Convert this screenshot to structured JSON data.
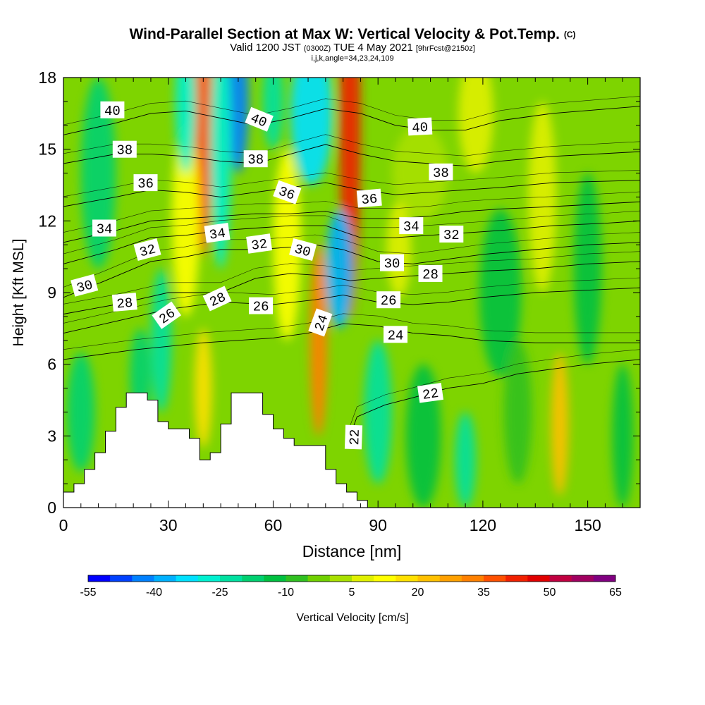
{
  "titles": {
    "main": "Wind-Parallel Section at Max W: Vertical Velocity & Pot.Temp.",
    "copyright": "(C)",
    "valid_prefix": "Valid 1200 JST",
    "valid_z": "(0300Z)",
    "valid_date": "TUE 4 May 2021",
    "forecast": "[9hrFcst@2150z]",
    "indices": "i,j,k,angle=34,23,24,109"
  },
  "chart_data": {
    "type": "heatmap",
    "xlabel": "Distance [nm]",
    "ylabel": "Height [Kft MSL]",
    "xlim": [
      0,
      165
    ],
    "ylim": [
      0,
      18
    ],
    "x_ticks": [
      0,
      30,
      60,
      90,
      120,
      150
    ],
    "y_ticks": [
      0,
      3,
      6,
      9,
      12,
      15,
      18
    ],
    "colorbar": {
      "label": "Vertical Velocity [cm/s]",
      "tick_labels": [
        "-55",
        "-40",
        "-25",
        "-10",
        "5",
        "20",
        "35",
        "50",
        "65"
      ],
      "tick_values": [
        -55,
        -40,
        -25,
        -10,
        5,
        20,
        35,
        50,
        65
      ],
      "colors": [
        "#0000ff",
        "#0040ff",
        "#0080ff",
        "#00b0ff",
        "#00e0ff",
        "#00f0d0",
        "#00e0a0",
        "#00d070",
        "#00c040",
        "#30c020",
        "#70d000",
        "#a8e000",
        "#e0f000",
        "#ffff00",
        "#ffe000",
        "#ffc000",
        "#ffa000",
        "#ff8000",
        "#ff5000",
        "#f02000",
        "#e00000",
        "#c00040",
        "#a00060",
        "#800080"
      ]
    },
    "terrain_profile": [
      [
        0,
        0.65
      ],
      [
        3,
        0.65
      ],
      [
        3,
        1.0
      ],
      [
        6,
        1.0
      ],
      [
        6,
        1.6
      ],
      [
        9,
        1.6
      ],
      [
        9,
        2.3
      ],
      [
        12,
        2.3
      ],
      [
        12,
        3.2
      ],
      [
        15,
        3.2
      ],
      [
        15,
        4.2
      ],
      [
        18,
        4.2
      ],
      [
        18,
        4.8
      ],
      [
        21,
        4.8
      ],
      [
        21,
        4.8
      ],
      [
        24,
        4.8
      ],
      [
        24,
        4.5
      ],
      [
        27,
        4.5
      ],
      [
        27,
        3.6
      ],
      [
        30,
        3.6
      ],
      [
        30,
        3.3
      ],
      [
        33,
        3.3
      ],
      [
        33,
        3.3
      ],
      [
        36,
        3.3
      ],
      [
        36,
        2.9
      ],
      [
        39,
        2.9
      ],
      [
        39,
        2.0
      ],
      [
        42,
        2.0
      ],
      [
        42,
        2.3
      ],
      [
        45,
        2.3
      ],
      [
        45,
        3.5
      ],
      [
        48,
        3.5
      ],
      [
        48,
        4.8
      ],
      [
        51,
        4.8
      ],
      [
        51,
        4.8
      ],
      [
        54,
        4.8
      ],
      [
        54,
        4.8
      ],
      [
        57,
        4.8
      ],
      [
        57,
        3.9
      ],
      [
        60,
        3.9
      ],
      [
        60,
        3.3
      ],
      [
        63,
        3.3
      ],
      [
        63,
        2.9
      ],
      [
        66,
        2.9
      ],
      [
        66,
        2.6
      ],
      [
        69,
        2.6
      ],
      [
        69,
        2.6
      ],
      [
        72,
        2.6
      ],
      [
        72,
        2.6
      ],
      [
        75,
        2.6
      ],
      [
        75,
        1.6
      ],
      [
        78,
        1.6
      ],
      [
        78,
        1.0
      ],
      [
        81,
        1.0
      ],
      [
        81,
        0.65
      ],
      [
        84,
        0.65
      ],
      [
        84,
        0.3
      ],
      [
        87,
        0.3
      ],
      [
        87,
        0.0
      ]
    ],
    "velocity_features": [
      {
        "x": 40,
        "y": 16.5,
        "rx": 2.5,
        "ry": 6,
        "value": 40
      },
      {
        "x": 40,
        "y": 5,
        "rx": 2.5,
        "ry": 2.5,
        "value": 22
      },
      {
        "x": 50,
        "y": 17,
        "rx": 3,
        "ry": 3,
        "value": -40
      },
      {
        "x": 45,
        "y": 15,
        "rx": 3,
        "ry": 5,
        "value": -25
      },
      {
        "x": 60,
        "y": 17,
        "rx": 3,
        "ry": 2,
        "value": -20
      },
      {
        "x": 71,
        "y": 16.5,
        "rx": 6,
        "ry": 3,
        "value": -30
      },
      {
        "x": 82,
        "y": 16,
        "rx": 3,
        "ry": 8,
        "value": 45
      },
      {
        "x": 73,
        "y": 7,
        "rx": 2.5,
        "ry": 4,
        "value": 38
      },
      {
        "x": 79,
        "y": 10,
        "rx": 4,
        "ry": 2.5,
        "value": -35
      },
      {
        "x": 64,
        "y": 11,
        "rx": 4,
        "ry": 4,
        "value": 15
      },
      {
        "x": 35,
        "y": 12,
        "rx": 4,
        "ry": 4,
        "value": 14
      },
      {
        "x": 28,
        "y": 7,
        "rx": 3,
        "ry": 3,
        "value": -22
      },
      {
        "x": 35,
        "y": 17,
        "rx": 3,
        "ry": 3,
        "value": -25
      },
      {
        "x": 10,
        "y": 14,
        "rx": 5,
        "ry": 4,
        "value": -15
      },
      {
        "x": 118,
        "y": 16.5,
        "rx": 5,
        "ry": 2.5,
        "value": 10
      },
      {
        "x": 137,
        "y": 13,
        "rx": 4,
        "ry": 4,
        "value": 8
      },
      {
        "x": 142,
        "y": 3.5,
        "rx": 2.5,
        "ry": 3,
        "value": 28
      },
      {
        "x": 90,
        "y": 4,
        "rx": 4,
        "ry": 3,
        "value": -20
      },
      {
        "x": 103,
        "y": 3,
        "rx": 5,
        "ry": 3,
        "value": -12
      },
      {
        "x": 115,
        "y": 2,
        "rx": 3,
        "ry": 2,
        "value": -22
      },
      {
        "x": 125,
        "y": 9,
        "rx": 6,
        "ry": 3.5,
        "value": -12
      },
      {
        "x": 150,
        "y": 10,
        "rx": 4,
        "ry": 4,
        "value": -12
      },
      {
        "x": 102,
        "y": 14,
        "rx": 8,
        "ry": 2,
        "value": 6
      },
      {
        "x": 96,
        "y": 10.8,
        "rx": 3.5,
        "ry": 2,
        "value": 12
      },
      {
        "x": 22,
        "y": 5.5,
        "rx": 3,
        "ry": 2,
        "value": -18
      },
      {
        "x": 5,
        "y": 4,
        "rx": 4,
        "ry": 2.5,
        "value": -14
      },
      {
        "x": 160,
        "y": 3,
        "rx": 3,
        "ry": 3,
        "value": -12
      },
      {
        "x": 130,
        "y": 4,
        "rx": 4,
        "ry": 3,
        "value": -8
      }
    ],
    "theta_series": [
      {
        "name": "22",
        "points": [
          [
            82,
            3.0
          ],
          [
            84,
            3.8
          ],
          [
            92,
            4.3
          ],
          [
            100,
            4.6
          ],
          [
            110,
            5.0
          ],
          [
            120,
            5.2
          ],
          [
            130,
            5.6
          ],
          [
            140,
            5.8
          ],
          [
            150,
            6.0
          ],
          [
            165,
            6.2
          ]
        ]
      },
      {
        "name": "24",
        "points": [
          [
            0,
            6.2
          ],
          [
            20,
            6.6
          ],
          [
            40,
            6.9
          ],
          [
            60,
            7.1
          ],
          [
            70,
            7.3
          ],
          [
            80,
            7.7
          ],
          [
            90,
            7.6
          ],
          [
            100,
            7.3
          ],
          [
            110,
            7.2
          ],
          [
            120,
            7.0
          ],
          [
            135,
            6.9
          ],
          [
            150,
            6.9
          ],
          [
            165,
            6.9
          ]
        ]
      },
      {
        "name": "26",
        "points": [
          [
            0,
            7.3
          ],
          [
            15,
            7.8
          ],
          [
            30,
            8.3
          ],
          [
            45,
            8.6
          ],
          [
            60,
            8.5
          ],
          [
            72,
            8.7
          ],
          [
            80,
            8.9
          ],
          [
            90,
            8.6
          ],
          [
            100,
            8.5
          ],
          [
            110,
            8.6
          ],
          [
            120,
            8.8
          ],
          [
            135,
            9.0
          ],
          [
            150,
            9.1
          ],
          [
            165,
            9.2
          ]
        ]
      },
      {
        "name": "28",
        "points": [
          [
            0,
            8.1
          ],
          [
            15,
            8.5
          ],
          [
            30,
            9.0
          ],
          [
            45,
            9.0
          ],
          [
            55,
            9.6
          ],
          [
            65,
            9.8
          ],
          [
            75,
            9.7
          ],
          [
            82,
            9.5
          ],
          [
            90,
            9.6
          ],
          [
            100,
            9.7
          ],
          [
            110,
            9.8
          ],
          [
            120,
            9.9
          ],
          [
            135,
            10.0
          ],
          [
            150,
            10.2
          ],
          [
            165,
            10.3
          ]
        ]
      },
      {
        "name": "30",
        "points": [
          [
            0,
            8.8
          ],
          [
            12,
            9.5
          ],
          [
            25,
            10.3
          ],
          [
            35,
            10.5
          ],
          [
            45,
            10.8
          ],
          [
            55,
            10.8
          ],
          [
            65,
            10.9
          ],
          [
            72,
            11.0
          ],
          [
            80,
            10.8
          ],
          [
            90,
            10.3
          ],
          [
            100,
            10.2
          ],
          [
            110,
            10.4
          ],
          [
            120,
            10.6
          ],
          [
            135,
            10.8
          ],
          [
            150,
            11.0
          ],
          [
            165,
            11.1
          ]
        ]
      },
      {
        "name": "32",
        "points": [
          [
            0,
            10.2
          ],
          [
            15,
            10.8
          ],
          [
            25,
            11.3
          ],
          [
            35,
            11.4
          ],
          [
            45,
            11.6
          ],
          [
            55,
            11.7
          ],
          [
            65,
            11.8
          ],
          [
            75,
            11.8
          ],
          [
            85,
            11.3
          ],
          [
            95,
            11.3
          ],
          [
            105,
            11.4
          ],
          [
            115,
            11.5
          ],
          [
            125,
            11.6
          ],
          [
            140,
            11.8
          ],
          [
            155,
            11.9
          ],
          [
            165,
            12.0
          ]
        ]
      },
      {
        "name": "34",
        "points": [
          [
            0,
            11.1
          ],
          [
            15,
            11.6
          ],
          [
            25,
            12.0
          ],
          [
            35,
            12.1
          ],
          [
            45,
            12.2
          ],
          [
            55,
            12.3
          ],
          [
            65,
            12.3
          ],
          [
            75,
            12.4
          ],
          [
            85,
            12.1
          ],
          [
            95,
            12.1
          ],
          [
            105,
            12.2
          ],
          [
            115,
            12.4
          ],
          [
            125,
            12.5
          ],
          [
            140,
            12.6
          ],
          [
            165,
            12.8
          ]
        ]
      },
      {
        "name": "36",
        "points": [
          [
            0,
            12.6
          ],
          [
            15,
            13.0
          ],
          [
            25,
            13.3
          ],
          [
            35,
            13.2
          ],
          [
            45,
            13.0
          ],
          [
            55,
            13.2
          ],
          [
            65,
            13.4
          ],
          [
            75,
            13.6
          ],
          [
            85,
            13.3
          ],
          [
            95,
            13.1
          ],
          [
            105,
            13.2
          ],
          [
            115,
            13.3
          ],
          [
            125,
            13.4
          ],
          [
            140,
            13.6
          ],
          [
            165,
            13.7
          ]
        ]
      },
      {
        "name": "38",
        "points": [
          [
            0,
            14.4
          ],
          [
            15,
            14.8
          ],
          [
            25,
            14.8
          ],
          [
            35,
            14.7
          ],
          [
            45,
            14.5
          ],
          [
            55,
            14.4
          ],
          [
            65,
            14.8
          ],
          [
            75,
            15.2
          ],
          [
            85,
            14.8
          ],
          [
            95,
            14.5
          ],
          [
            105,
            14.4
          ],
          [
            115,
            14.3
          ],
          [
            125,
            14.5
          ],
          [
            140,
            14.7
          ],
          [
            165,
            14.9
          ]
        ]
      },
      {
        "name": "40",
        "points": [
          [
            0,
            15.6
          ],
          [
            15,
            16.1
          ],
          [
            25,
            16.5
          ],
          [
            35,
            16.6
          ],
          [
            45,
            16.3
          ],
          [
            55,
            16.0
          ],
          [
            65,
            16.3
          ],
          [
            75,
            16.7
          ],
          [
            85,
            16.5
          ],
          [
            95,
            16.0
          ],
          [
            105,
            15.8
          ],
          [
            115,
            15.8
          ],
          [
            125,
            16.2
          ],
          [
            140,
            16.5
          ],
          [
            165,
            16.8
          ]
        ]
      }
    ],
    "contour_labels": [
      {
        "text": "40",
        "x": 14,
        "y": 16.65,
        "angle": 0
      },
      {
        "text": "40",
        "x": 56,
        "y": 16.25,
        "angle": 22
      },
      {
        "text": "40",
        "x": 102,
        "y": 15.95,
        "angle": -3
      },
      {
        "text": "38",
        "x": 17.5,
        "y": 15.0,
        "angle": 0
      },
      {
        "text": "38",
        "x": 55,
        "y": 14.6,
        "angle": 0
      },
      {
        "text": "38",
        "x": 108,
        "y": 14.05,
        "angle": 0
      },
      {
        "text": "36",
        "x": 23.5,
        "y": 13.6,
        "angle": 0
      },
      {
        "text": "36",
        "x": 64,
        "y": 13.2,
        "angle": 20
      },
      {
        "text": "36",
        "x": 87.5,
        "y": 12.95,
        "angle": -5
      },
      {
        "text": "34",
        "x": 11.7,
        "y": 11.7,
        "angle": 0
      },
      {
        "text": "34",
        "x": 44,
        "y": 11.5,
        "angle": -8
      },
      {
        "text": "34",
        "x": 99.5,
        "y": 11.8,
        "angle": 0
      },
      {
        "text": "32",
        "x": 24,
        "y": 10.8,
        "angle": -15
      },
      {
        "text": "32",
        "x": 56,
        "y": 11.05,
        "angle": -8
      },
      {
        "text": "32",
        "x": 111,
        "y": 11.45,
        "angle": 0
      },
      {
        "text": "30",
        "x": 6,
        "y": 9.3,
        "angle": -15
      },
      {
        "text": "30",
        "x": 68.5,
        "y": 10.8,
        "angle": 15
      },
      {
        "text": "30",
        "x": 94,
        "y": 10.25,
        "angle": 0
      },
      {
        "text": "28",
        "x": 17.5,
        "y": 8.6,
        "angle": -5
      },
      {
        "text": "28",
        "x": 44,
        "y": 8.75,
        "angle": -25
      },
      {
        "text": "28",
        "x": 105,
        "y": 9.8,
        "angle": 0
      },
      {
        "text": "26",
        "x": 29.5,
        "y": 8.05,
        "angle": -35
      },
      {
        "text": "26",
        "x": 56.5,
        "y": 8.45,
        "angle": 0
      },
      {
        "text": "26",
        "x": 93,
        "y": 8.7,
        "angle": 0
      },
      {
        "text": "24",
        "x": 73.5,
        "y": 7.75,
        "angle": -70
      },
      {
        "text": "24",
        "x": 95,
        "y": 7.25,
        "angle": 0
      },
      {
        "text": "22",
        "x": 105,
        "y": 4.8,
        "angle": -8
      },
      {
        "text": "22",
        "x": 83,
        "y": 2.95,
        "angle": -88
      }
    ],
    "title": "Wind-Parallel Section at Max W: Vertical Velocity & Pot.Temp."
  }
}
